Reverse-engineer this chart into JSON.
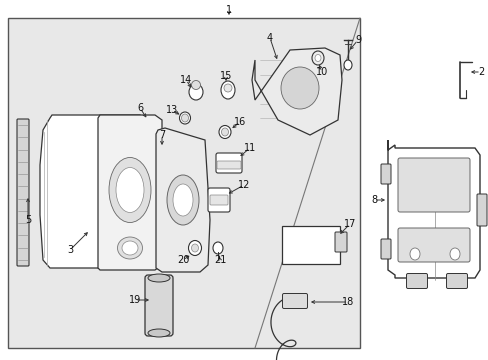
{
  "bg_color": "#ffffff",
  "box_bg": "#e8e8e8",
  "line_color": "#333333",
  "text_color": "#111111",
  "font_size": 7,
  "fig_w": 4.89,
  "fig_h": 3.6,
  "dpi": 100
}
